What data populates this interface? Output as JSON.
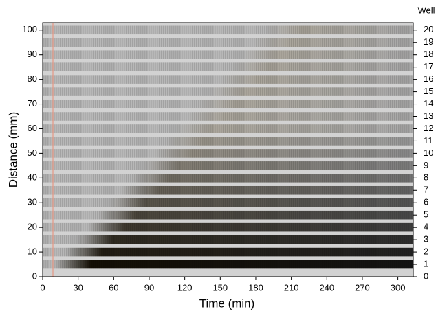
{
  "chart_data": {
    "type": "image",
    "xlabel": "Time (min)",
    "ylabel": "Distance (mm)",
    "y2label": "Well",
    "xlim": [
      0,
      313
    ],
    "xticks": [
      0,
      30,
      60,
      90,
      120,
      150,
      180,
      210,
      240,
      270,
      300
    ],
    "ylim": [
      0,
      103
    ],
    "yticks": [
      0,
      10,
      20,
      30,
      40,
      50,
      60,
      70,
      80,
      90,
      100
    ],
    "y2lim": [
      0,
      20.6
    ],
    "y2ticks": [
      0,
      1,
      2,
      3,
      4,
      5,
      6,
      7,
      8,
      9,
      10,
      11,
      12,
      13,
      14,
      15,
      16,
      17,
      18,
      19,
      20
    ]
  }
}
